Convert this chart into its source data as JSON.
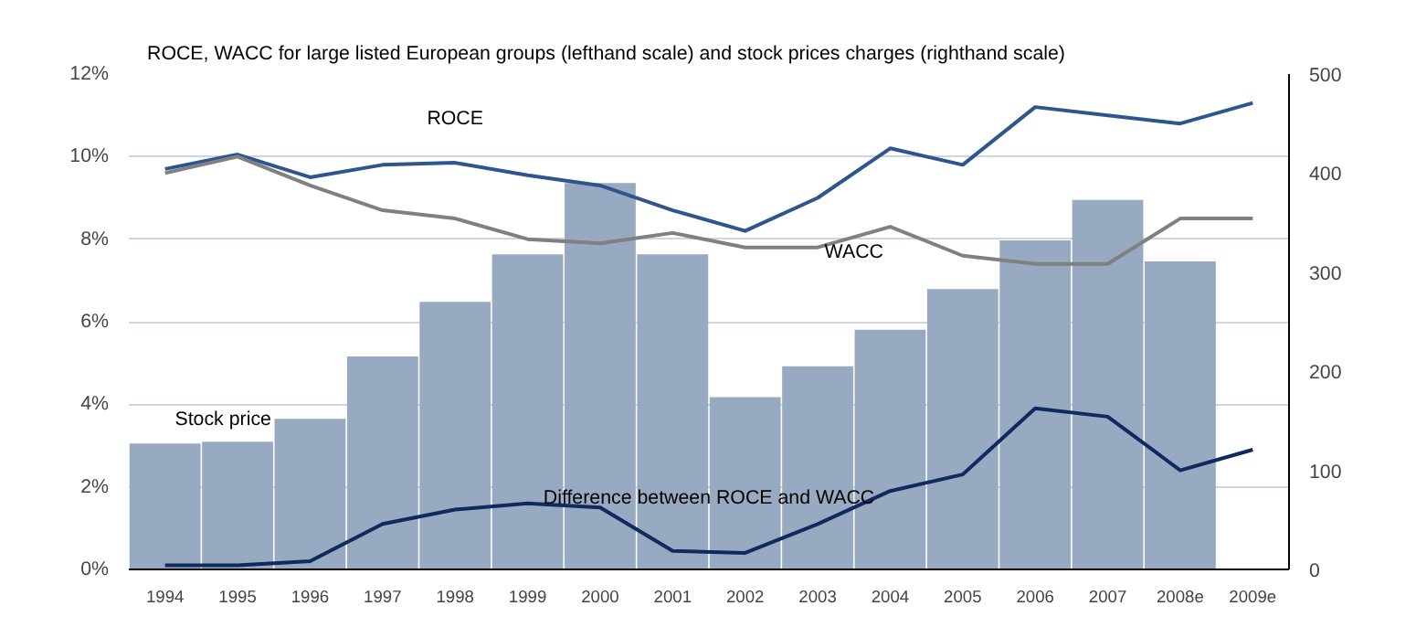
{
  "chart_data": {
    "type": "bar",
    "title": "ROCE, WACC for large listed European groups (lefthand scale) and stock prices charges (righthand scale)",
    "categories": [
      "1994",
      "1995",
      "1996",
      "1997",
      "1998",
      "1999",
      "2000",
      "2001",
      "2002",
      "2003",
      "2004",
      "2005",
      "2006",
      "2007",
      "2008e",
      "2009e"
    ],
    "series": [
      {
        "name": "Stock price",
        "axis": "y2",
        "color": "#98a9c2",
        "values": [
          127,
          129,
          152,
          215,
          270,
          318,
          390,
          318,
          174,
          205,
          242,
          283,
          332,
          373,
          311,
          null
        ]
      },
      {
        "type": "line",
        "name": "ROCE",
        "color": "#2e5590",
        "values": [
          9.7,
          10.05,
          9.5,
          9.8,
          9.85,
          9.55,
          9.3,
          8.7,
          8.2,
          9.0,
          10.2,
          9.8,
          11.2,
          11.0,
          10.8,
          11.3
        ]
      },
      {
        "type": "line",
        "name": "WACC",
        "color": "#808080",
        "values": [
          9.6,
          10.0,
          9.3,
          8.7,
          8.5,
          8.0,
          7.9,
          8.15,
          7.8,
          7.8,
          8.3,
          7.6,
          7.4,
          7.4,
          8.5,
          8.5
        ]
      },
      {
        "type": "line",
        "name": "Difference between ROCE and WACC",
        "color": "#0f2a5e",
        "values": [
          0.1,
          0.1,
          0.2,
          1.1,
          1.45,
          1.6,
          1.5,
          0.45,
          0.4,
          1.1,
          1.9,
          2.3,
          3.9,
          3.7,
          2.4,
          2.9
        ]
      }
    ],
    "ylim": [
      0,
      12
    ],
    "yticks": [
      {
        "value": 0,
        "label": "0%"
      },
      {
        "value": 2,
        "label": "2%"
      },
      {
        "value": 4,
        "label": "4%"
      },
      {
        "value": 6,
        "label": "6%"
      },
      {
        "value": 8,
        "label": "8%"
      },
      {
        "value": 10,
        "label": "10%"
      },
      {
        "value": 12,
        "label": "12%"
      }
    ],
    "y2lim": [
      0,
      500
    ],
    "y2ticks": [
      0,
      100,
      200,
      300,
      400,
      500
    ],
    "grid": "y",
    "line_style": "solid"
  }
}
